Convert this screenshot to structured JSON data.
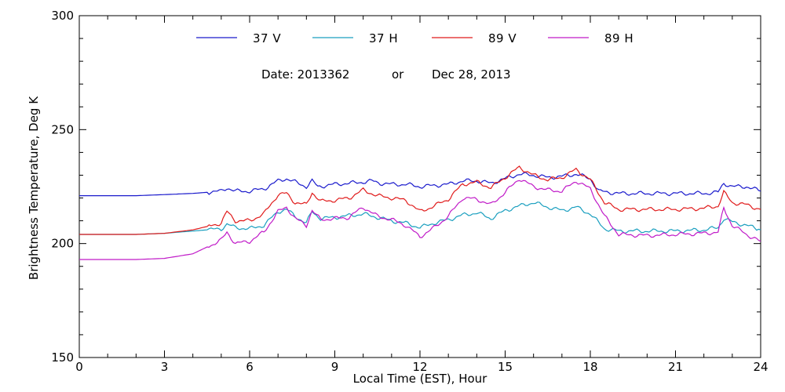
{
  "chart_data": {
    "type": "line",
    "subtitle": {
      "date_label": "Date: 2013362",
      "or_label": "or",
      "date_text": "Dec 28, 2013"
    },
    "xlabel": "Local Time (EST), Hour",
    "ylabel": "Brightness Temperature, Deg K",
    "xlim": [
      0,
      24
    ],
    "ylim": [
      150,
      300
    ],
    "x_ticks": [
      "0",
      "3",
      "6",
      "9",
      "12",
      "15",
      "18",
      "21",
      "24"
    ],
    "y_ticks": [
      "150",
      "200",
      "250",
      "300"
    ],
    "grid": false,
    "legend_position": "top",
    "series": [
      {
        "name": "37 V",
        "color": "#1a1acc",
        "points": [
          [
            0,
            221
          ],
          [
            1,
            221
          ],
          [
            2,
            221
          ],
          [
            3,
            221.5
          ],
          [
            4,
            222
          ],
          [
            5,
            223
          ],
          [
            5.2,
            224.5
          ],
          [
            5.5,
            223
          ],
          [
            6,
            223
          ],
          [
            6.5,
            224
          ],
          [
            7,
            227.5
          ],
          [
            7.3,
            228.5
          ],
          [
            7.6,
            227
          ],
          [
            8,
            225
          ],
          [
            8.2,
            227.5
          ],
          [
            8.4,
            225
          ],
          [
            9,
            226
          ],
          [
            9.5,
            226.5
          ],
          [
            10,
            227
          ],
          [
            10.3,
            227.5
          ],
          [
            10.6,
            226.5
          ],
          [
            11,
            226
          ],
          [
            11.5,
            226
          ],
          [
            12,
            225
          ],
          [
            12.5,
            225.5
          ],
          [
            13,
            226
          ],
          [
            13.5,
            227.5
          ],
          [
            14,
            227.5
          ],
          [
            14.5,
            226.5
          ],
          [
            15,
            228.5
          ],
          [
            15.5,
            230.5
          ],
          [
            16,
            230
          ],
          [
            16.5,
            229
          ],
          [
            17,
            229.5
          ],
          [
            17.5,
            230.5
          ],
          [
            18,
            228.5
          ],
          [
            18.3,
            223
          ],
          [
            19,
            222
          ],
          [
            20,
            222
          ],
          [
            21,
            222
          ],
          [
            22,
            222
          ],
          [
            22.5,
            222.5
          ],
          [
            22.7,
            226.5
          ],
          [
            23,
            225
          ],
          [
            23.5,
            225
          ],
          [
            24,
            223
          ]
        ]
      },
      {
        "name": "37 H",
        "color": "#1a9fbf",
        "points": [
          [
            0,
            204
          ],
          [
            1,
            204
          ],
          [
            2,
            204
          ],
          [
            3,
            204.5
          ],
          [
            4,
            205.5
          ],
          [
            5,
            206.5
          ],
          [
            5.2,
            208.5
          ],
          [
            5.5,
            207
          ],
          [
            6,
            206.5
          ],
          [
            6.5,
            208
          ],
          [
            7,
            214
          ],
          [
            7.3,
            215
          ],
          [
            7.6,
            212
          ],
          [
            8,
            209
          ],
          [
            8.2,
            214
          ],
          [
            8.5,
            211
          ],
          [
            9,
            211.5
          ],
          [
            10,
            213
          ],
          [
            10.5,
            211.5
          ],
          [
            11,
            210
          ],
          [
            11.5,
            209
          ],
          [
            12,
            207
          ],
          [
            12.5,
            209
          ],
          [
            13,
            210.5
          ],
          [
            13.5,
            212.5
          ],
          [
            14,
            213.5
          ],
          [
            14.5,
            211
          ],
          [
            15,
            214.5
          ],
          [
            15.5,
            216.5
          ],
          [
            16,
            218
          ],
          [
            16.5,
            216
          ],
          [
            17,
            214.5
          ],
          [
            17.5,
            216
          ],
          [
            18,
            213
          ],
          [
            18.5,
            206.5
          ],
          [
            19,
            205.5
          ],
          [
            20,
            205.5
          ],
          [
            21,
            205.5
          ],
          [
            22,
            206
          ],
          [
            22.5,
            207
          ],
          [
            22.7,
            211
          ],
          [
            23,
            209.5
          ],
          [
            23.5,
            208
          ],
          [
            24,
            206
          ]
        ]
      },
      {
        "name": "89 V",
        "color": "#e01a1a",
        "points": [
          [
            0,
            204
          ],
          [
            1,
            204
          ],
          [
            2,
            204
          ],
          [
            3,
            204.5
          ],
          [
            4,
            206
          ],
          [
            5,
            209
          ],
          [
            5.2,
            214
          ],
          [
            5.5,
            210
          ],
          [
            6,
            210
          ],
          [
            6.5,
            213
          ],
          [
            7,
            221.5
          ],
          [
            7.3,
            222
          ],
          [
            7.6,
            218
          ],
          [
            8,
            217
          ],
          [
            8.2,
            222.5
          ],
          [
            8.5,
            218.5
          ],
          [
            9,
            219
          ],
          [
            9.5,
            220
          ],
          [
            10,
            223.5
          ],
          [
            10.5,
            221
          ],
          [
            11,
            220
          ],
          [
            11.5,
            219
          ],
          [
            12,
            214
          ],
          [
            12.5,
            216.5
          ],
          [
            13,
            219.5
          ],
          [
            13.5,
            226
          ],
          [
            14,
            227
          ],
          [
            14.5,
            224.5
          ],
          [
            15,
            229
          ],
          [
            15.5,
            233.5
          ],
          [
            16,
            230
          ],
          [
            16.5,
            228
          ],
          [
            17,
            229
          ],
          [
            17.5,
            232.5
          ],
          [
            18,
            228
          ],
          [
            18.5,
            218
          ],
          [
            19,
            215
          ],
          [
            20,
            215
          ],
          [
            21,
            215
          ],
          [
            22,
            215.5
          ],
          [
            22.5,
            216.5
          ],
          [
            22.7,
            222.5
          ],
          [
            23,
            218
          ],
          [
            23.5,
            217
          ],
          [
            24,
            215
          ]
        ]
      },
      {
        "name": "89 H",
        "color": "#c01ac8",
        "points": [
          [
            0,
            193
          ],
          [
            1,
            193
          ],
          [
            2,
            193
          ],
          [
            3,
            193.5
          ],
          [
            4,
            195.5
          ],
          [
            5,
            201.5
          ],
          [
            5.2,
            205
          ],
          [
            5.5,
            200
          ],
          [
            6,
            201
          ],
          [
            6.5,
            205
          ],
          [
            7,
            214
          ],
          [
            7.3,
            216
          ],
          [
            7.6,
            211
          ],
          [
            8,
            208
          ],
          [
            8.2,
            214.5
          ],
          [
            8.5,
            210.5
          ],
          [
            9,
            211
          ],
          [
            9.5,
            211.5
          ],
          [
            10,
            216
          ],
          [
            10.5,
            212
          ],
          [
            11,
            210.5
          ],
          [
            11.5,
            208
          ],
          [
            12,
            203
          ],
          [
            12.5,
            207
          ],
          [
            13,
            212
          ],
          [
            13.5,
            220
          ],
          [
            14,
            219.5
          ],
          [
            14.5,
            217
          ],
          [
            15,
            222.5
          ],
          [
            15.5,
            228.5
          ],
          [
            16,
            225
          ],
          [
            16.5,
            223.5
          ],
          [
            17,
            223
          ],
          [
            17.5,
            227.5
          ],
          [
            18,
            224
          ],
          [
            18.5,
            212
          ],
          [
            19,
            204
          ],
          [
            20,
            203.5
          ],
          [
            21,
            204
          ],
          [
            22,
            204.5
          ],
          [
            22.5,
            205
          ],
          [
            22.7,
            215.5
          ],
          [
            23,
            208
          ],
          [
            23.5,
            204
          ],
          [
            24,
            201
          ]
        ]
      }
    ]
  }
}
